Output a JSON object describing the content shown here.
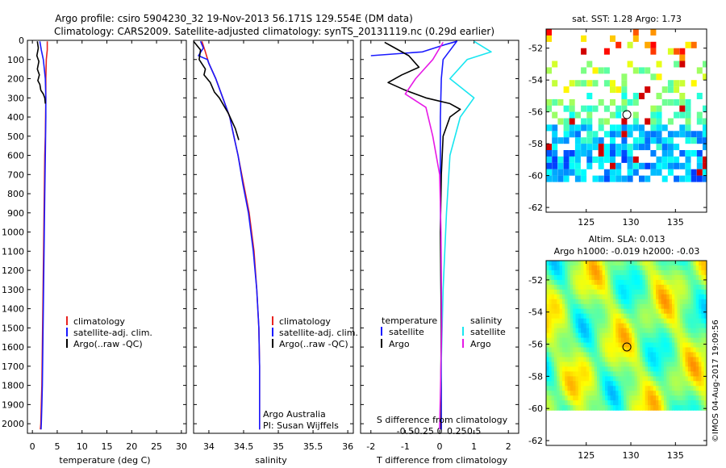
{
  "title": {
    "line1": "Argo profile: csiro 5904230_32 19-Nov-2013 56.171S 129.554E (DM data)",
    "line2": "Climatology: CARS2009. Satellite-adjusted climatology: synTS_20131119.nc (0.29d earlier)"
  },
  "colors": {
    "climatology": "#e8231f",
    "satellite": "#1a1aff",
    "argo": "#000000",
    "sat_salinity": "#19e6f0",
    "argo_salinity": "#e619e6"
  },
  "chart_data": [
    {
      "id": "temperature",
      "type": "line",
      "xlabel": "temperature (deg C)",
      "ylabel": "",
      "xlim": [
        -1,
        31
      ],
      "ylim": [
        2050,
        0
      ],
      "x_ticks": [
        0,
        5,
        10,
        15,
        20,
        25,
        30
      ],
      "y_ticks": [
        0,
        100,
        200,
        300,
        400,
        500,
        600,
        700,
        800,
        900,
        1000,
        1100,
        1200,
        1300,
        1400,
        1500,
        1600,
        1700,
        1800,
        1900,
        2000
      ],
      "legend": [
        "climatology",
        "satellite-adj. clim.",
        "Argo(..raw -QC)"
      ],
      "legend_position": "lower-center",
      "series": [
        {
          "name": "climatology",
          "color": "#e8231f",
          "x": [
            3.0,
            3.0,
            2.8,
            2.7,
            2.7,
            2.65,
            2.6,
            2.5,
            2.4,
            2.3,
            2.2,
            2.1,
            2.0,
            1.9,
            1.8,
            1.7,
            1.6
          ],
          "y": [
            5,
            50,
            100,
            200,
            300,
            400,
            500,
            600,
            800,
            1000,
            1200,
            1400,
            1600,
            1800,
            1900,
            2000,
            2030
          ]
        },
        {
          "name": "satellite-adj. clim.",
          "color": "#1a1aff",
          "x": [
            1.5,
            1.8,
            2.2,
            2.6,
            2.7,
            2.7,
            2.65,
            2.6,
            2.5,
            2.4,
            2.3,
            2.2,
            2.1,
            2.0,
            1.9,
            1.8,
            1.75
          ],
          "y": [
            5,
            50,
            100,
            200,
            300,
            400,
            500,
            600,
            800,
            1000,
            1200,
            1400,
            1600,
            1800,
            1900,
            2000,
            2030
          ]
        },
        {
          "name": "Argo(..raw -QC)",
          "color": "#000000",
          "x": [
            1.0,
            1.2,
            0.9,
            1.3,
            1.0,
            1.4,
            1.1,
            1.5,
            1.7,
            2.2,
            2.5,
            2.6
          ],
          "y": [
            5,
            40,
            80,
            110,
            150,
            180,
            210,
            230,
            260,
            280,
            300,
            330
          ]
        }
      ]
    },
    {
      "id": "salinity",
      "type": "line",
      "xlabel": "salinity",
      "ylabel": "",
      "xlim": [
        33.78,
        36.08
      ],
      "ylim": [
        2050,
        0
      ],
      "x_ticks": [
        34,
        34.5,
        35,
        35.5,
        36
      ],
      "legend": [
        "climatology",
        "satellite-adj. clim.",
        "Argo(..raw -QC)"
      ],
      "legend_position": "lower-center",
      "annotations": [
        "Argo Australia",
        "PI: Susan Wijffels"
      ],
      "series": [
        {
          "name": "climatology",
          "color": "#e8231f",
          "x": [
            33.9,
            33.95,
            34.0,
            34.1,
            34.2,
            34.3,
            34.36,
            34.42,
            34.5,
            34.58,
            34.65,
            34.69,
            34.72,
            34.73,
            34.73,
            34.73
          ],
          "y": [
            5,
            60,
            120,
            200,
            300,
            400,
            500,
            600,
            750,
            900,
            1100,
            1300,
            1500,
            1700,
            1900,
            2030
          ]
        },
        {
          "name": "satellite-adj. clim.",
          "color": "#1a1aff",
          "x": [
            33.88,
            33.92,
            33.85,
            33.98,
            34.0,
            34.1,
            34.2,
            34.3,
            34.36,
            34.42,
            34.49,
            34.57,
            34.64,
            34.69,
            34.72,
            34.73,
            34.73,
            34.73
          ],
          "y": [
            5,
            40,
            80,
            100,
            120,
            200,
            300,
            400,
            500,
            600,
            750,
            900,
            1100,
            1300,
            1500,
            1700,
            1900,
            2030
          ]
        },
        {
          "name": "Argo(..raw -QC)",
          "color": "#000000",
          "x": [
            33.78,
            33.88,
            33.86,
            33.95,
            33.93,
            34.02,
            34.08,
            34.15,
            34.28,
            34.38,
            34.43
          ],
          "y": [
            5,
            50,
            100,
            150,
            180,
            220,
            270,
            300,
            380,
            460,
            520
          ]
        }
      ]
    },
    {
      "id": "difference",
      "type": "line",
      "xlabel": "T difference from climatology",
      "x2label": "S difference from climatology",
      "xlim": [
        -2.3,
        2.3
      ],
      "ylim": [
        2050,
        0
      ],
      "x_ticks": [
        -2,
        -1,
        0,
        1,
        2
      ],
      "x2_ticks": [
        -0.5,
        -0.25,
        0,
        0.25,
        0.5
      ],
      "x2_ticklabels": [
        "-0.5",
        "-0.25",
        "0",
        "0.25",
        "0.5"
      ],
      "legend_groups": {
        "left": "temperature",
        "right": "salinity"
      },
      "legend": [
        "satellite",
        "Argo",
        "satellite",
        "Argo"
      ],
      "series": [
        {
          "name": "satellite",
          "group": "temperature",
          "color": "#1a1aff",
          "x": [
            -2.0,
            -0.5,
            0.2,
            0.5,
            0.1,
            0.05,
            0.02,
            0.02,
            0.05,
            0.05
          ],
          "y": [
            80,
            60,
            20,
            5,
            100,
            200,
            400,
            800,
            1500,
            2030
          ]
        },
        {
          "name": "Argo",
          "group": "temperature",
          "color": "#000000",
          "x": [
            -1.6,
            -1.3,
            -0.9,
            -0.6,
            -1.1,
            -1.5,
            -1.0,
            -0.4,
            0.3,
            0.6,
            0.3,
            0.1,
            0.05,
            0.02,
            0.05,
            0.02
          ],
          "y": [
            10,
            40,
            80,
            140,
            180,
            220,
            260,
            300,
            330,
            360,
            400,
            500,
            700,
            1000,
            1500,
            2030
          ]
        },
        {
          "name": "satellite",
          "group": "salinity",
          "color": "#19e6f0",
          "x": [
            0.5,
            0.75,
            0.4,
            0.15,
            0.5,
            0.3,
            0.15,
            0.1,
            0.05,
            0.0
          ],
          "y": [
            5,
            60,
            100,
            200,
            300,
            400,
            600,
            900,
            1300,
            2030
          ]
        },
        {
          "name": "Argo",
          "group": "salinity",
          "color": "#e619e6",
          "x": [
            0.05,
            -0.1,
            -0.35,
            -0.5,
            -0.2,
            -0.1,
            0.0,
            0.02,
            0.03,
            0.0
          ],
          "y": [
            10,
            100,
            200,
            280,
            350,
            500,
            700,
            1000,
            1500,
            2030
          ]
        }
      ]
    },
    {
      "id": "sst_map",
      "type": "heatmap",
      "title": "sat. SST: 1.28 Argo: 1.73",
      "xlim": [
        120.5,
        138.5
      ],
      "ylim": [
        -62.3,
        -50.8
      ],
      "x_ticks": [
        125,
        130,
        135
      ],
      "y_ticks": [
        -52,
        -54,
        -56,
        -58,
        -60,
        -62
      ],
      "argo_position": {
        "lon": 129.554,
        "lat": -56.171
      }
    },
    {
      "id": "sla_map",
      "type": "heatmap",
      "title": "Altim. SLA: 0.013",
      "subtitle": "Argo h1000: -0.019 h2000: -0.03",
      "xlim": [
        120.5,
        138.5
      ],
      "ylim": [
        -62.3,
        -50.8
      ],
      "x_ticks": [
        125,
        130,
        135
      ],
      "y_ticks": [
        -52,
        -54,
        -56,
        -58,
        -60,
        -62
      ],
      "argo_position": {
        "lon": 129.554,
        "lat": -56.171
      }
    }
  ],
  "credit": "©IMOS 04-Aug-2017 19:09:56"
}
